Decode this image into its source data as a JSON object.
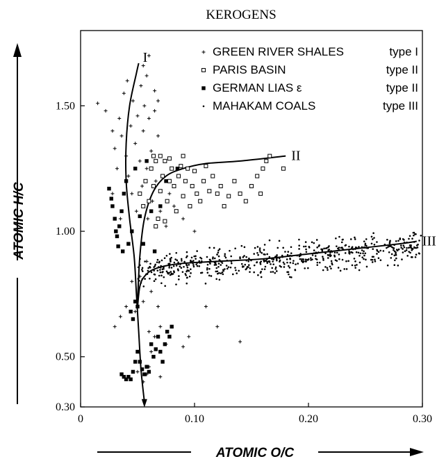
{
  "chart_data": {
    "type": "scatter",
    "title": "KEROGENS",
    "xlabel": "ATOMIC O/C",
    "ylabel": "ATOMIC H/C",
    "xlim": [
      0,
      0.3
    ],
    "ylim": [
      0.3,
      1.8
    ],
    "x_ticks": [
      {
        "value": 0,
        "label": "0"
      },
      {
        "value": 0.1,
        "label": "0.10"
      },
      {
        "value": 0.2,
        "label": "0.20"
      },
      {
        "value": 0.3,
        "label": "0.30"
      }
    ],
    "y_ticks": [
      {
        "value": 0.3,
        "label": "0.30"
      },
      {
        "value": 0.5,
        "label": "0.50"
      },
      {
        "value": 1.0,
        "label": "1.00"
      },
      {
        "value": 1.5,
        "label": "1.50"
      }
    ],
    "grid": false,
    "legend_position": "top-right",
    "legend": [
      {
        "label": "GREEN RIVER SHALES",
        "type_label": "type I",
        "marker": "plus"
      },
      {
        "label": "PARIS BASIN",
        "type_label": "type II",
        "marker": "open-square"
      },
      {
        "label": "GERMAN LIAS ε",
        "type_label": "type II",
        "marker": "filled-square"
      },
      {
        "label": "MAHAKAM COALS",
        "type_label": "type III",
        "marker": "dot"
      }
    ],
    "curves": [
      {
        "label": "I",
        "points": [
          [
            0.056,
            0.32
          ],
          [
            0.053,
            0.45
          ],
          [
            0.051,
            0.6
          ],
          [
            0.049,
            0.75
          ],
          [
            0.047,
            0.9
          ],
          [
            0.043,
            1.05
          ],
          [
            0.04,
            1.2
          ],
          [
            0.04,
            1.35
          ],
          [
            0.043,
            1.5
          ],
          [
            0.049,
            1.63
          ],
          [
            0.051,
            1.67
          ]
        ]
      },
      {
        "label": "II",
        "points": [
          [
            0.05,
            0.72
          ],
          [
            0.052,
            0.9
          ],
          [
            0.056,
            1.05
          ],
          [
            0.064,
            1.16
          ],
          [
            0.075,
            1.22
          ],
          [
            0.09,
            1.25
          ],
          [
            0.11,
            1.27
          ],
          [
            0.14,
            1.28
          ],
          [
            0.18,
            1.3
          ]
        ]
      },
      {
        "label": "III",
        "points": [
          [
            0.05,
            0.7
          ],
          [
            0.052,
            0.78
          ],
          [
            0.056,
            0.82
          ],
          [
            0.065,
            0.85
          ],
          [
            0.085,
            0.87
          ],
          [
            0.12,
            0.88
          ],
          [
            0.16,
            0.89
          ],
          [
            0.2,
            0.91
          ],
          [
            0.24,
            0.93
          ],
          [
            0.28,
            0.95
          ],
          [
            0.295,
            0.96
          ]
        ]
      }
    ],
    "series": [
      {
        "name": "GREEN RIVER SHALES",
        "marker": "plus",
        "points": [
          [
            0.015,
            1.51
          ],
          [
            0.022,
            1.48
          ],
          [
            0.028,
            1.4
          ],
          [
            0.03,
            1.33
          ],
          [
            0.032,
            1.25
          ],
          [
            0.034,
            1.45
          ],
          [
            0.036,
            1.38
          ],
          [
            0.038,
            1.55
          ],
          [
            0.04,
            1.3
          ],
          [
            0.041,
            1.6
          ],
          [
            0.042,
            1.22
          ],
          [
            0.044,
            1.42
          ],
          [
            0.045,
            1.15
          ],
          [
            0.046,
            1.52
          ],
          [
            0.048,
            1.35
          ],
          [
            0.049,
            1.08
          ],
          [
            0.05,
            1.46
          ],
          [
            0.052,
            1.28
          ],
          [
            0.053,
            1.58
          ],
          [
            0.054,
            1.18
          ],
          [
            0.055,
            1.4
          ],
          [
            0.056,
            1.5
          ],
          [
            0.058,
            1.25
          ],
          [
            0.059,
            1.05
          ],
          [
            0.06,
            1.45
          ],
          [
            0.062,
            1.32
          ],
          [
            0.063,
            1.12
          ],
          [
            0.065,
            1.48
          ],
          [
            0.066,
            1.2
          ],
          [
            0.068,
            1.38
          ],
          [
            0.07,
            1.08
          ],
          [
            0.072,
            1.22
          ],
          [
            0.075,
            1.02
          ],
          [
            0.078,
            1.15
          ],
          [
            0.082,
            1.1
          ],
          [
            0.09,
            1.05
          ],
          [
            0.035,
            1.05
          ],
          [
            0.028,
            1.15
          ],
          [
            0.06,
            0.6
          ],
          [
            0.065,
            0.58
          ],
          [
            0.07,
            0.62
          ],
          [
            0.075,
            0.55
          ],
          [
            0.062,
            0.52
          ],
          [
            0.072,
            0.48
          ],
          [
            0.078,
            0.58
          ],
          [
            0.09,
            0.54
          ],
          [
            0.03,
            0.62
          ],
          [
            0.035,
            0.66
          ],
          [
            0.04,
            0.7
          ],
          [
            0.048,
            0.68
          ],
          [
            0.055,
            0.72
          ],
          [
            0.062,
            0.76
          ],
          [
            0.068,
            0.7
          ],
          [
            0.045,
            0.8
          ],
          [
            0.052,
            0.82
          ],
          [
            0.058,
            0.88
          ],
          [
            0.06,
            1.7
          ],
          [
            0.058,
            1.62
          ],
          [
            0.055,
            1.66
          ],
          [
            0.065,
            1.56
          ],
          [
            0.068,
            1.52
          ],
          [
            0.055,
            0.4
          ],
          [
            0.058,
            0.43
          ],
          [
            0.06,
            0.46
          ],
          [
            0.05,
            0.44
          ],
          [
            0.07,
            0.42
          ],
          [
            0.1,
            1.0
          ],
          [
            0.12,
            0.62
          ],
          [
            0.14,
            0.56
          ],
          [
            0.095,
            0.58
          ],
          [
            0.11,
            0.7
          ]
        ]
      },
      {
        "name": "PARIS BASIN",
        "marker": "open-square",
        "points": [
          [
            0.052,
            1.15
          ],
          [
            0.055,
            1.1
          ],
          [
            0.057,
            1.2
          ],
          [
            0.06,
            1.12
          ],
          [
            0.062,
            1.25
          ],
          [
            0.064,
            1.18
          ],
          [
            0.066,
            1.28
          ],
          [
            0.068,
            1.05
          ],
          [
            0.07,
            1.16
          ],
          [
            0.072,
            1.22
          ],
          [
            0.074,
            1.28
          ],
          [
            0.076,
            1.12
          ],
          [
            0.078,
            1.2
          ],
          [
            0.08,
            1.25
          ],
          [
            0.082,
            1.18
          ],
          [
            0.084,
            1.08
          ],
          [
            0.086,
            1.22
          ],
          [
            0.088,
            1.26
          ],
          [
            0.09,
            1.14
          ],
          [
            0.092,
            1.2
          ],
          [
            0.094,
            1.25
          ],
          [
            0.096,
            1.1
          ],
          [
            0.098,
            1.18
          ],
          [
            0.1,
            1.24
          ],
          [
            0.102,
            1.15
          ],
          [
            0.105,
            1.12
          ],
          [
            0.108,
            1.2
          ],
          [
            0.11,
            1.26
          ],
          [
            0.113,
            1.16
          ],
          [
            0.116,
            1.22
          ],
          [
            0.12,
            1.15
          ],
          [
            0.123,
            1.18
          ],
          [
            0.126,
            1.1
          ],
          [
            0.13,
            1.14
          ],
          [
            0.135,
            1.2
          ],
          [
            0.14,
            1.15
          ],
          [
            0.145,
            1.12
          ],
          [
            0.15,
            1.18
          ],
          [
            0.155,
            1.22
          ],
          [
            0.158,
            1.15
          ],
          [
            0.16,
            1.25
          ],
          [
            0.163,
            1.28
          ],
          [
            0.166,
            1.3
          ],
          [
            0.178,
            1.25
          ],
          [
            0.09,
            1.3
          ],
          [
            0.078,
            1.29
          ],
          [
            0.07,
            1.3
          ],
          [
            0.064,
            1.3
          ],
          [
            0.074,
            1.04
          ],
          [
            0.066,
            1.02
          ]
        ]
      },
      {
        "name": "GERMAN LIAS ε",
        "marker": "filled-square",
        "points": [
          [
            0.025,
            1.17
          ],
          [
            0.027,
            1.13
          ],
          [
            0.028,
            1.1
          ],
          [
            0.03,
            1.05
          ],
          [
            0.031,
            1.0
          ],
          [
            0.032,
            0.98
          ],
          [
            0.033,
            0.94
          ],
          [
            0.034,
            1.02
          ],
          [
            0.036,
            1.08
          ],
          [
            0.037,
            0.92
          ],
          [
            0.038,
            1.15
          ],
          [
            0.04,
            1.2
          ],
          [
            0.042,
            0.95
          ],
          [
            0.045,
            1.0
          ],
          [
            0.048,
            1.25
          ],
          [
            0.052,
            1.06
          ],
          [
            0.055,
            0.95
          ],
          [
            0.058,
            1.28
          ],
          [
            0.062,
            1.08
          ],
          [
            0.065,
            0.92
          ],
          [
            0.07,
            1.1
          ],
          [
            0.075,
            1.2
          ],
          [
            0.085,
            1.25
          ],
          [
            0.036,
            0.43
          ],
          [
            0.038,
            0.42
          ],
          [
            0.04,
            0.41
          ],
          [
            0.042,
            0.42
          ],
          [
            0.044,
            0.41
          ],
          [
            0.046,
            0.44
          ],
          [
            0.048,
            0.48
          ],
          [
            0.05,
            0.52
          ],
          [
            0.052,
            0.48
          ],
          [
            0.054,
            0.45
          ],
          [
            0.056,
            0.43
          ],
          [
            0.058,
            0.46
          ],
          [
            0.06,
            0.44
          ],
          [
            0.062,
            0.55
          ],
          [
            0.064,
            0.5
          ],
          [
            0.066,
            0.53
          ],
          [
            0.068,
            0.58
          ],
          [
            0.07,
            0.52
          ],
          [
            0.072,
            0.48
          ],
          [
            0.074,
            0.55
          ],
          [
            0.076,
            0.6
          ],
          [
            0.078,
            0.58
          ],
          [
            0.08,
            0.62
          ],
          [
            0.044,
            0.68
          ],
          [
            0.046,
            0.65
          ],
          [
            0.048,
            0.72
          ],
          [
            0.05,
            0.7
          ]
        ]
      },
      {
        "name": "MAHAKAM COALS",
        "marker": "dot",
        "note": "dense band; 600 points approximated along y ≈ 0.82–0.98 for O/C 0.05–0.30"
      }
    ],
    "mahakam_band": {
      "count": 600,
      "x_range": [
        0.05,
        0.3
      ],
      "y_center_start": 0.84,
      "y_center_end": 0.94,
      "y_spread": 0.09
    }
  }
}
